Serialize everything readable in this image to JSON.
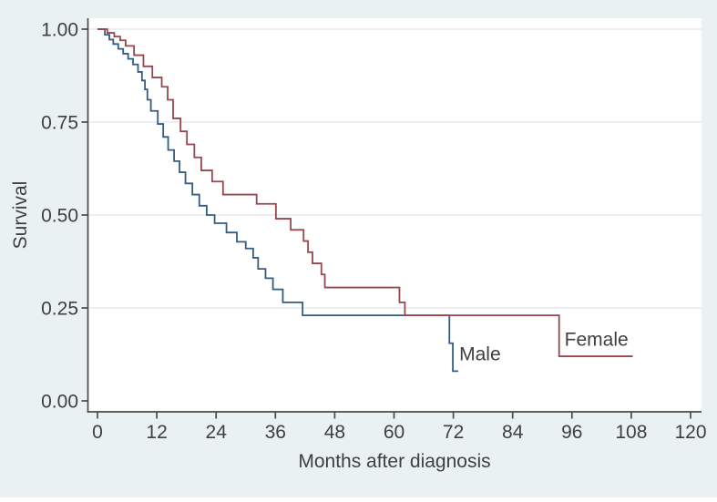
{
  "figure": {
    "background": "#e9f1f2",
    "plot_background": "#ffffff",
    "grid_color": "#e3ecee",
    "axis_color": "#4a4a4a",
    "text_color": "#3f3f3f"
  },
  "chart_data": {
    "type": "line",
    "subtype": "kaplan-meier-step",
    "title": "",
    "xlabel": "Months after diagnosis",
    "ylabel": "Survival",
    "xlim": [
      0,
      120
    ],
    "ylim": [
      0.0,
      1.0
    ],
    "grid": "horizontal",
    "legend_position": "inline-curve-labels",
    "x_ticks": [
      0,
      12,
      24,
      36,
      48,
      60,
      72,
      84,
      96,
      108,
      120
    ],
    "y_ticks": [
      {
        "v": 0.0,
        "label": "0.00"
      },
      {
        "v": 0.25,
        "label": "0.25"
      },
      {
        "v": 0.5,
        "label": "0.50"
      },
      {
        "v": 0.75,
        "label": "0.75"
      },
      {
        "v": 1.0,
        "label": "1.00"
      }
    ],
    "series": [
      {
        "name": "Male",
        "color": "#335d85",
        "points": [
          [
            0,
            1.0
          ],
          [
            1.5,
            0.985
          ],
          [
            2.4,
            0.972
          ],
          [
            3.2,
            0.96
          ],
          [
            4.2,
            0.947
          ],
          [
            5.2,
            0.934
          ],
          [
            6.2,
            0.92
          ],
          [
            7.2,
            0.905
          ],
          [
            8.2,
            0.885
          ],
          [
            9.0,
            0.862
          ],
          [
            9.6,
            0.838
          ],
          [
            10.1,
            0.81
          ],
          [
            10.8,
            0.78
          ],
          [
            12.2,
            0.745
          ],
          [
            13.3,
            0.71
          ],
          [
            14.3,
            0.675
          ],
          [
            15.5,
            0.645
          ],
          [
            16.6,
            0.615
          ],
          [
            17.8,
            0.585
          ],
          [
            19.2,
            0.555
          ],
          [
            20.6,
            0.525
          ],
          [
            22.1,
            0.5
          ],
          [
            23.7,
            0.478
          ],
          [
            26.1,
            0.453
          ],
          [
            28.2,
            0.428
          ],
          [
            30.0,
            0.41
          ],
          [
            31.5,
            0.385
          ],
          [
            32.5,
            0.355
          ],
          [
            34.0,
            0.33
          ],
          [
            35.5,
            0.3
          ],
          [
            37.5,
            0.265
          ],
          [
            41.5,
            0.23
          ],
          [
            71.2,
            0.155
          ],
          [
            71.9,
            0.08
          ]
        ],
        "end_t": 73.0,
        "label": {
          "text": "Male",
          "t": 73.2,
          "s": 0.127
        }
      },
      {
        "name": "Female",
        "color": "#97474d",
        "points": [
          [
            0,
            1.0
          ],
          [
            2.0,
            0.99
          ],
          [
            3.4,
            0.98
          ],
          [
            4.6,
            0.97
          ],
          [
            5.7,
            0.955
          ],
          [
            7.4,
            0.93
          ],
          [
            9.3,
            0.9
          ],
          [
            11.1,
            0.87
          ],
          [
            13.0,
            0.845
          ],
          [
            14.2,
            0.81
          ],
          [
            15.3,
            0.76
          ],
          [
            16.8,
            0.725
          ],
          [
            18.1,
            0.69
          ],
          [
            19.6,
            0.655
          ],
          [
            21.0,
            0.62
          ],
          [
            23.2,
            0.59
          ],
          [
            25.4,
            0.555
          ],
          [
            32.2,
            0.53
          ],
          [
            36.1,
            0.49
          ],
          [
            39.1,
            0.46
          ],
          [
            41.7,
            0.43
          ],
          [
            42.6,
            0.4
          ],
          [
            43.5,
            0.37
          ],
          [
            45.3,
            0.34
          ],
          [
            46.0,
            0.305
          ],
          [
            61.1,
            0.265
          ],
          [
            62.2,
            0.23
          ],
          [
            93.4,
            0.12
          ]
        ],
        "end_t": 108.3,
        "label": {
          "text": "Female",
          "t": 94.5,
          "s": 0.167
        }
      }
    ]
  }
}
